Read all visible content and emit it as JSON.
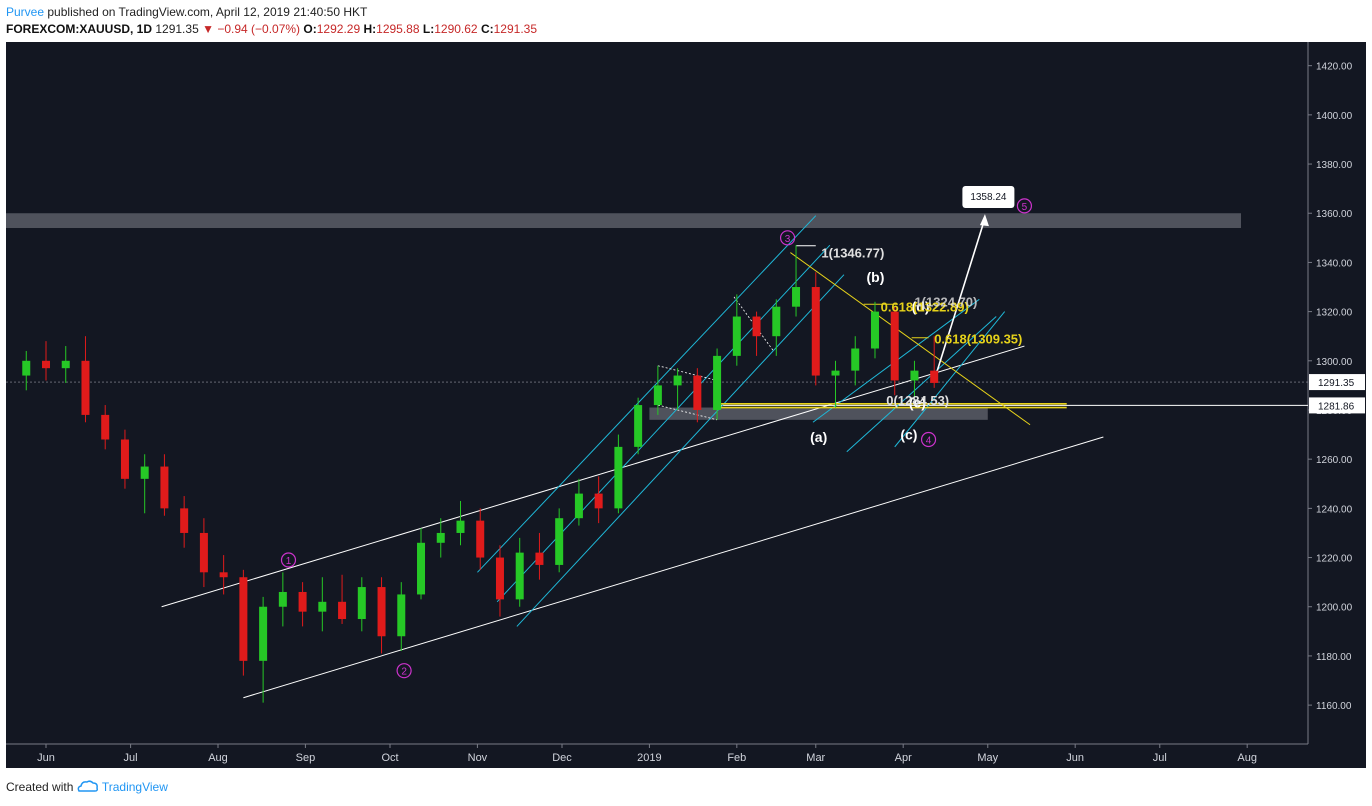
{
  "header": {
    "author": "Purvee",
    "published": "published on TradingView.com, April 12, 2019 21:40:50 HKT",
    "symbol": "FOREXCOM:XAUUSD, 1D",
    "last": "1291.35",
    "change_icon": "down-triangle-icon",
    "change": "−0.94 (−0.07%)",
    "o_label": "O:",
    "o_value": "1292.29",
    "h_label": "H:",
    "h_value": "1295.88",
    "l_label": "L:",
    "l_value": "1290.62",
    "c_label": "C:",
    "c_value": "1291.35"
  },
  "footer": {
    "created": "Created with",
    "brand": "TradingView",
    "logo_icon": "tradingview-cloud-icon"
  },
  "colors": {
    "background": "#131722",
    "up": "#26c826",
    "down": "#e01b1b",
    "cyan": "#1fb8d8",
    "yellow": "#e6d21a",
    "wave": "#cc33cc",
    "zone": "#5a5d66",
    "text": "#d1d4dc"
  },
  "chart_data": {
    "type": "candlestick",
    "ylim": [
      1145,
      1428
    ],
    "y_ticks": [
      "1160.00",
      "1180.00",
      "1200.00",
      "1220.00",
      "1240.00",
      "1260.00",
      "1280.00",
      "1300.00",
      "1320.00",
      "1340.00",
      "1360.00",
      "1380.00",
      "1400.00",
      "1420.00"
    ],
    "x_ticks": [
      "Jun",
      "Jul",
      "Aug",
      "Sep",
      "Oct",
      "Nov",
      "Dec",
      "2019",
      "Feb",
      "Mar",
      "Apr",
      "May",
      "Jun",
      "Jul",
      "Aug"
    ],
    "price_labels": [
      {
        "text": "1291.35",
        "value": 1291.35
      },
      {
        "text": "1281.86",
        "value": 1281.86
      }
    ],
    "candles": [
      {
        "x": "2018-05-25",
        "o": 1294,
        "h": 1304,
        "l": 1288,
        "c": 1300
      },
      {
        "x": "2018-06-01",
        "o": 1300,
        "h": 1308,
        "l": 1292,
        "c": 1297
      },
      {
        "x": "2018-06-08",
        "o": 1297,
        "h": 1306,
        "l": 1291,
        "c": 1300
      },
      {
        "x": "2018-06-15",
        "o": 1300,
        "h": 1310,
        "l": 1275,
        "c": 1278
      },
      {
        "x": "2018-06-22",
        "o": 1278,
        "h": 1282,
        "l": 1264,
        "c": 1268
      },
      {
        "x": "2018-06-29",
        "o": 1268,
        "h": 1272,
        "l": 1248,
        "c": 1252
      },
      {
        "x": "2018-07-06",
        "o": 1252,
        "h": 1262,
        "l": 1238,
        "c": 1257
      },
      {
        "x": "2018-07-13",
        "o": 1257,
        "h": 1262,
        "l": 1237,
        "c": 1240
      },
      {
        "x": "2018-07-20",
        "o": 1240,
        "h": 1245,
        "l": 1224,
        "c": 1230
      },
      {
        "x": "2018-07-27",
        "o": 1230,
        "h": 1236,
        "l": 1208,
        "c": 1214
      },
      {
        "x": "2018-08-03",
        "o": 1214,
        "h": 1221,
        "l": 1205,
        "c": 1212
      },
      {
        "x": "2018-08-10",
        "o": 1212,
        "h": 1215,
        "l": 1172,
        "c": 1178
      },
      {
        "x": "2018-08-17",
        "o": 1178,
        "h": 1204,
        "l": 1161,
        "c": 1200
      },
      {
        "x": "2018-08-24",
        "o": 1200,
        "h": 1214,
        "l": 1192,
        "c": 1206
      },
      {
        "x": "2018-08-31",
        "o": 1206,
        "h": 1210,
        "l": 1192,
        "c": 1198
      },
      {
        "x": "2018-09-07",
        "o": 1198,
        "h": 1212,
        "l": 1190,
        "c": 1202
      },
      {
        "x": "2018-09-14",
        "o": 1202,
        "h": 1213,
        "l": 1193,
        "c": 1195
      },
      {
        "x": "2018-09-21",
        "o": 1195,
        "h": 1212,
        "l": 1190,
        "c": 1208
      },
      {
        "x": "2018-09-28",
        "o": 1208,
        "h": 1212,
        "l": 1181,
        "c": 1188
      },
      {
        "x": "2018-10-05",
        "o": 1188,
        "h": 1210,
        "l": 1182,
        "c": 1205
      },
      {
        "x": "2018-10-12",
        "o": 1205,
        "h": 1232,
        "l": 1203,
        "c": 1226
      },
      {
        "x": "2018-10-19",
        "o": 1226,
        "h": 1236,
        "l": 1220,
        "c": 1230
      },
      {
        "x": "2018-10-26",
        "o": 1230,
        "h": 1243,
        "l": 1225,
        "c": 1235
      },
      {
        "x": "2018-11-02",
        "o": 1235,
        "h": 1240,
        "l": 1215,
        "c": 1220
      },
      {
        "x": "2018-11-09",
        "o": 1220,
        "h": 1225,
        "l": 1196,
        "c": 1203
      },
      {
        "x": "2018-11-16",
        "o": 1203,
        "h": 1228,
        "l": 1200,
        "c": 1222
      },
      {
        "x": "2018-11-23",
        "o": 1222,
        "h": 1230,
        "l": 1211,
        "c": 1217
      },
      {
        "x": "2018-11-30",
        "o": 1217,
        "h": 1240,
        "l": 1214,
        "c": 1236
      },
      {
        "x": "2018-12-07",
        "o": 1236,
        "h": 1252,
        "l": 1233,
        "c": 1246
      },
      {
        "x": "2018-12-14",
        "o": 1246,
        "h": 1253,
        "l": 1234,
        "c": 1240
      },
      {
        "x": "2018-12-21",
        "o": 1240,
        "h": 1270,
        "l": 1238,
        "c": 1265
      },
      {
        "x": "2018-12-28",
        "o": 1265,
        "h": 1285,
        "l": 1262,
        "c": 1282
      },
      {
        "x": "2019-01-04",
        "o": 1282,
        "h": 1298,
        "l": 1278,
        "c": 1290
      },
      {
        "x": "2019-01-11",
        "o": 1290,
        "h": 1297,
        "l": 1280,
        "c": 1294
      },
      {
        "x": "2019-01-18",
        "o": 1294,
        "h": 1297,
        "l": 1275,
        "c": 1280
      },
      {
        "x": "2019-01-25",
        "o": 1280,
        "h": 1305,
        "l": 1276,
        "c": 1302
      },
      {
        "x": "2019-02-01",
        "o": 1302,
        "h": 1327,
        "l": 1298,
        "c": 1318
      },
      {
        "x": "2019-02-08",
        "o": 1318,
        "h": 1320,
        "l": 1302,
        "c": 1310
      },
      {
        "x": "2019-02-15",
        "o": 1310,
        "h": 1325,
        "l": 1302,
        "c": 1322
      },
      {
        "x": "2019-02-22",
        "o": 1322,
        "h": 1347,
        "l": 1318,
        "c": 1330
      },
      {
        "x": "2019-03-01",
        "o": 1330,
        "h": 1336,
        "l": 1290,
        "c": 1294
      },
      {
        "x": "2019-03-08",
        "o": 1294,
        "h": 1300,
        "l": 1281,
        "c": 1296
      },
      {
        "x": "2019-03-15",
        "o": 1296,
        "h": 1310,
        "l": 1290,
        "c": 1305
      },
      {
        "x": "2019-03-22",
        "o": 1305,
        "h": 1324,
        "l": 1301,
        "c": 1320
      },
      {
        "x": "2019-03-29",
        "o": 1320,
        "h": 1322,
        "l": 1286,
        "c": 1292
      },
      {
        "x": "2019-04-05",
        "o": 1292,
        "h": 1300,
        "l": 1285,
        "c": 1296
      },
      {
        "x": "2019-04-12",
        "o": 1296,
        "h": 1310,
        "l": 1289,
        "c": 1291
      }
    ],
    "annotations": {
      "target_label": "1358.24",
      "waves": [
        "1",
        "2",
        "3",
        "4",
        "5"
      ],
      "letters": [
        "(a)",
        "(b)",
        "(c)",
        "(d)",
        "(e)"
      ],
      "fib": [
        "1(1346.77)",
        "0.618(1322.89)",
        "1(1324.70)",
        "0.618(1309.35)",
        "0(1284.53)"
      ]
    }
  }
}
